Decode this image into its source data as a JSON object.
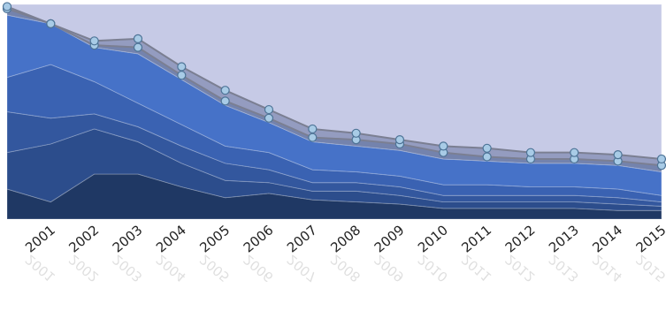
{
  "chart_data": {
    "type": "stacked-area",
    "categories": [
      null,
      "2001",
      "2002",
      "2003",
      "2004",
      "2005",
      "2006",
      "2007",
      "2008",
      "2009",
      "2010",
      "2011",
      "2012",
      "2013",
      "2014",
      "2015"
    ],
    "ylim": [
      0,
      100
    ],
    "series": [
      {
        "color": "#1f3864",
        "values": [
          14,
          8,
          21,
          21,
          15,
          10,
          12,
          9,
          8,
          7,
          5,
          5,
          5,
          5,
          4,
          4
        ]
      },
      {
        "color": "#2c4d8c",
        "values": [
          17,
          27,
          21,
          15,
          11,
          8,
          5,
          4,
          5,
          4,
          3,
          3,
          3,
          3,
          3,
          2
        ]
      },
      {
        "color": "#33579e",
        "values": [
          19,
          12,
          7,
          7,
          8,
          8,
          6,
          4,
          4,
          4,
          3,
          3,
          3,
          3,
          3,
          2
        ]
      },
      {
        "color": "#3a62b2",
        "values": [
          16,
          25,
          15,
          11,
          10,
          8,
          8,
          6,
          5,
          5,
          5,
          5,
          4,
          4,
          4,
          3
        ]
      },
      {
        "color": "#4672c8",
        "values": [
          29,
          19,
          16,
          23,
          21,
          19,
          14,
          13,
          12,
          12,
          12,
          11,
          11,
          11,
          11,
          11
        ]
      },
      {
        "color": "#7483ad",
        "values": [
          3,
          0,
          1,
          3,
          2,
          2,
          2,
          2,
          3,
          3,
          3,
          2,
          2,
          2,
          2,
          3
        ],
        "markers": true
      },
      {
        "color": "#949cc0",
        "values": [
          1,
          0,
          2,
          4,
          4,
          5,
          4,
          4,
          3,
          2,
          3,
          4,
          3,
          3,
          3,
          3
        ],
        "markers": true
      },
      {
        "color": "#c6cae6",
        "values": [
          1,
          9,
          17,
          16,
          29,
          40,
          49,
          58,
          60,
          63,
          66,
          67,
          69,
          69,
          70,
          72
        ]
      }
    ]
  }
}
